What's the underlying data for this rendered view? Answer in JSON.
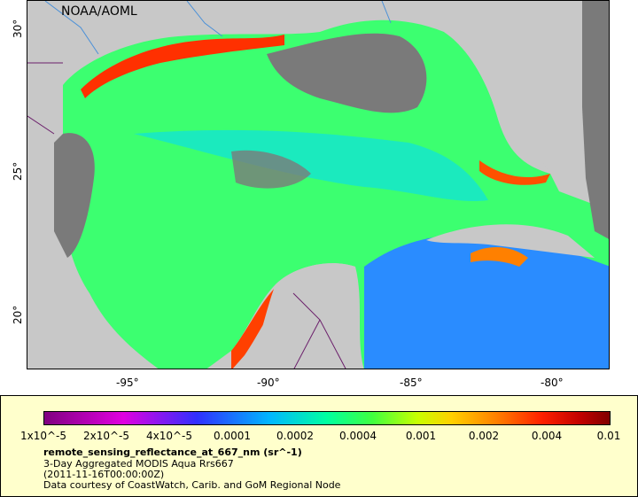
{
  "map": {
    "watermark": "NOAA/AOML",
    "lon_labels": [
      "-95°",
      "-90°",
      "-85°",
      "-80°"
    ],
    "lat_labels": [
      "30°",
      "25°",
      "20°"
    ]
  },
  "legend": {
    "colorbar_ticks": [
      "1x10^-5",
      "2x10^-5",
      "4x10^-5",
      "0.0001",
      "0.0002",
      "0.0004",
      "0.001",
      "0.002",
      "0.004",
      "0.01"
    ],
    "scale": "log",
    "variable_name": "remote_sensing_reflectance_at_667_nm (sr^-1)",
    "dataset_name": "3-Day Aggregated MODIS Aqua Rrs667",
    "time_range": "(2011-11-16T00:00:00Z)",
    "credit": "Data courtesy of CoastWatch, Carib. and GoM Regional Node"
  },
  "colors": {
    "land": "#c8c8c8",
    "no_data": "#7a7a7a",
    "water_low": "#00ffa0",
    "water_high": "#ff2000",
    "legend_background": "#ffffcc"
  }
}
